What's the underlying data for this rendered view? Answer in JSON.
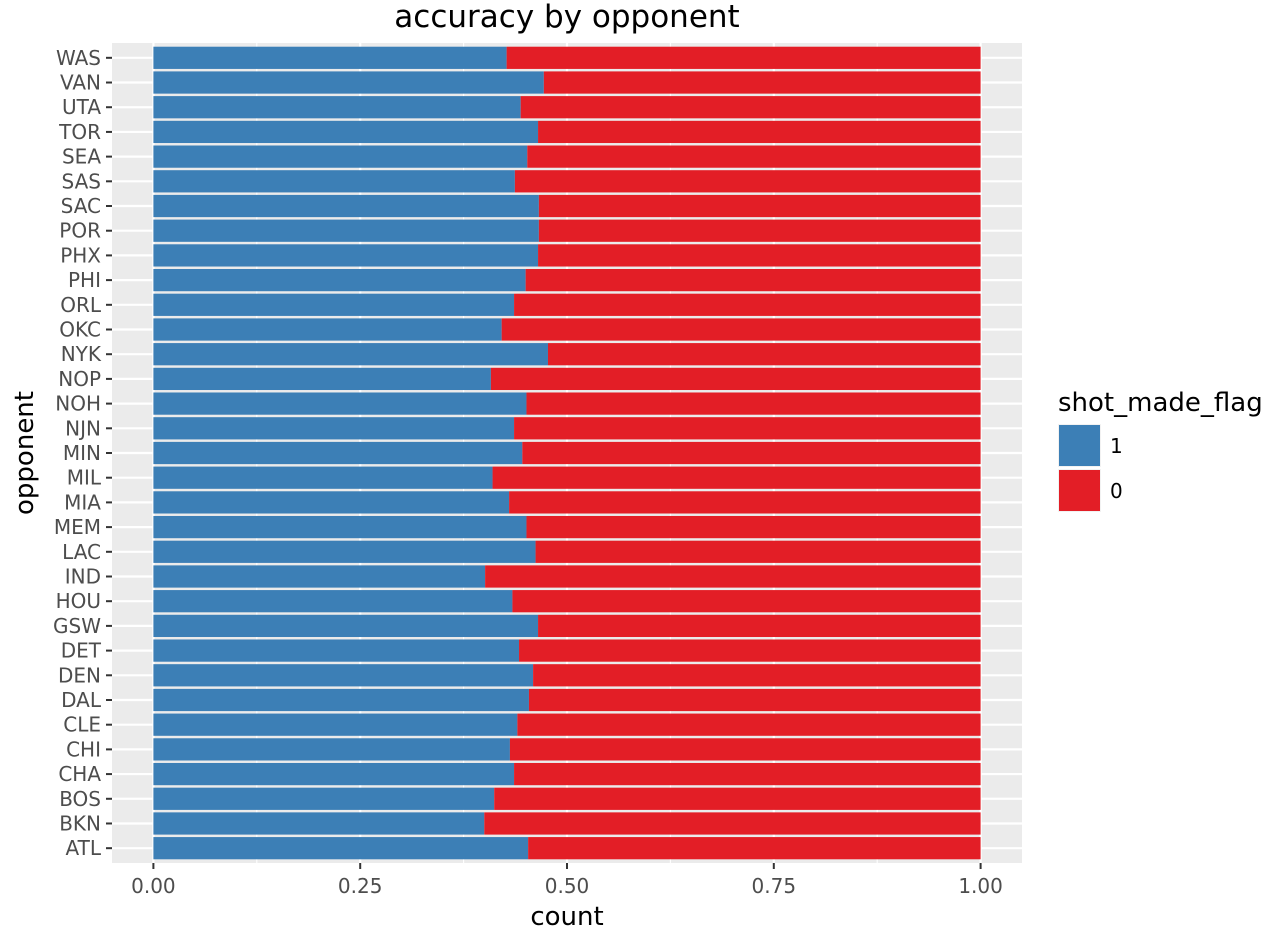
{
  "chart_data": {
    "type": "bar",
    "orientation": "horizontal",
    "stacking": "fill",
    "title": "accuracy by opponent",
    "xlabel": "count",
    "ylabel": "opponent",
    "xlim": [
      0,
      1
    ],
    "x_ticks": [
      "0.00",
      "0.25",
      "0.50",
      "0.75",
      "1.00"
    ],
    "x_tick_values": [
      0,
      0.25,
      0.5,
      0.75,
      1.0
    ],
    "grid": true,
    "legend": {
      "title": "shot_made_flag",
      "position": "right",
      "entries": [
        {
          "label": "1",
          "color": "#3c7fb6"
        },
        {
          "label": "0",
          "color": "#e31e26"
        }
      ]
    },
    "categories": [
      "WAS",
      "VAN",
      "UTA",
      "TOR",
      "SEA",
      "SAS",
      "SAC",
      "POR",
      "PHX",
      "PHI",
      "ORL",
      "OKC",
      "NYK",
      "NOP",
      "NOH",
      "NJN",
      "MIN",
      "MIL",
      "MIA",
      "MEM",
      "LAC",
      "IND",
      "HOU",
      "GSW",
      "DET",
      "DEN",
      "DAL",
      "CLE",
      "CHI",
      "CHA",
      "BOS",
      "BKN",
      "ATL"
    ],
    "series": [
      {
        "name": "1",
        "color": "#3c7fb6",
        "values": [
          0.427,
          0.472,
          0.444,
          0.465,
          0.452,
          0.437,
          0.466,
          0.466,
          0.465,
          0.45,
          0.436,
          0.421,
          0.477,
          0.408,
          0.451,
          0.436,
          0.446,
          0.41,
          0.43,
          0.451,
          0.462,
          0.401,
          0.434,
          0.465,
          0.442,
          0.459,
          0.454,
          0.44,
          0.431,
          0.436,
          0.412,
          0.4,
          0.453
        ]
      },
      {
        "name": "0",
        "color": "#e31e26",
        "values": [
          0.573,
          0.528,
          0.556,
          0.535,
          0.548,
          0.563,
          0.534,
          0.534,
          0.535,
          0.55,
          0.564,
          0.579,
          0.523,
          0.592,
          0.549,
          0.564,
          0.554,
          0.59,
          0.57,
          0.549,
          0.538,
          0.599,
          0.566,
          0.535,
          0.558,
          0.541,
          0.546,
          0.56,
          0.569,
          0.564,
          0.588,
          0.6,
          0.547
        ]
      }
    ]
  }
}
